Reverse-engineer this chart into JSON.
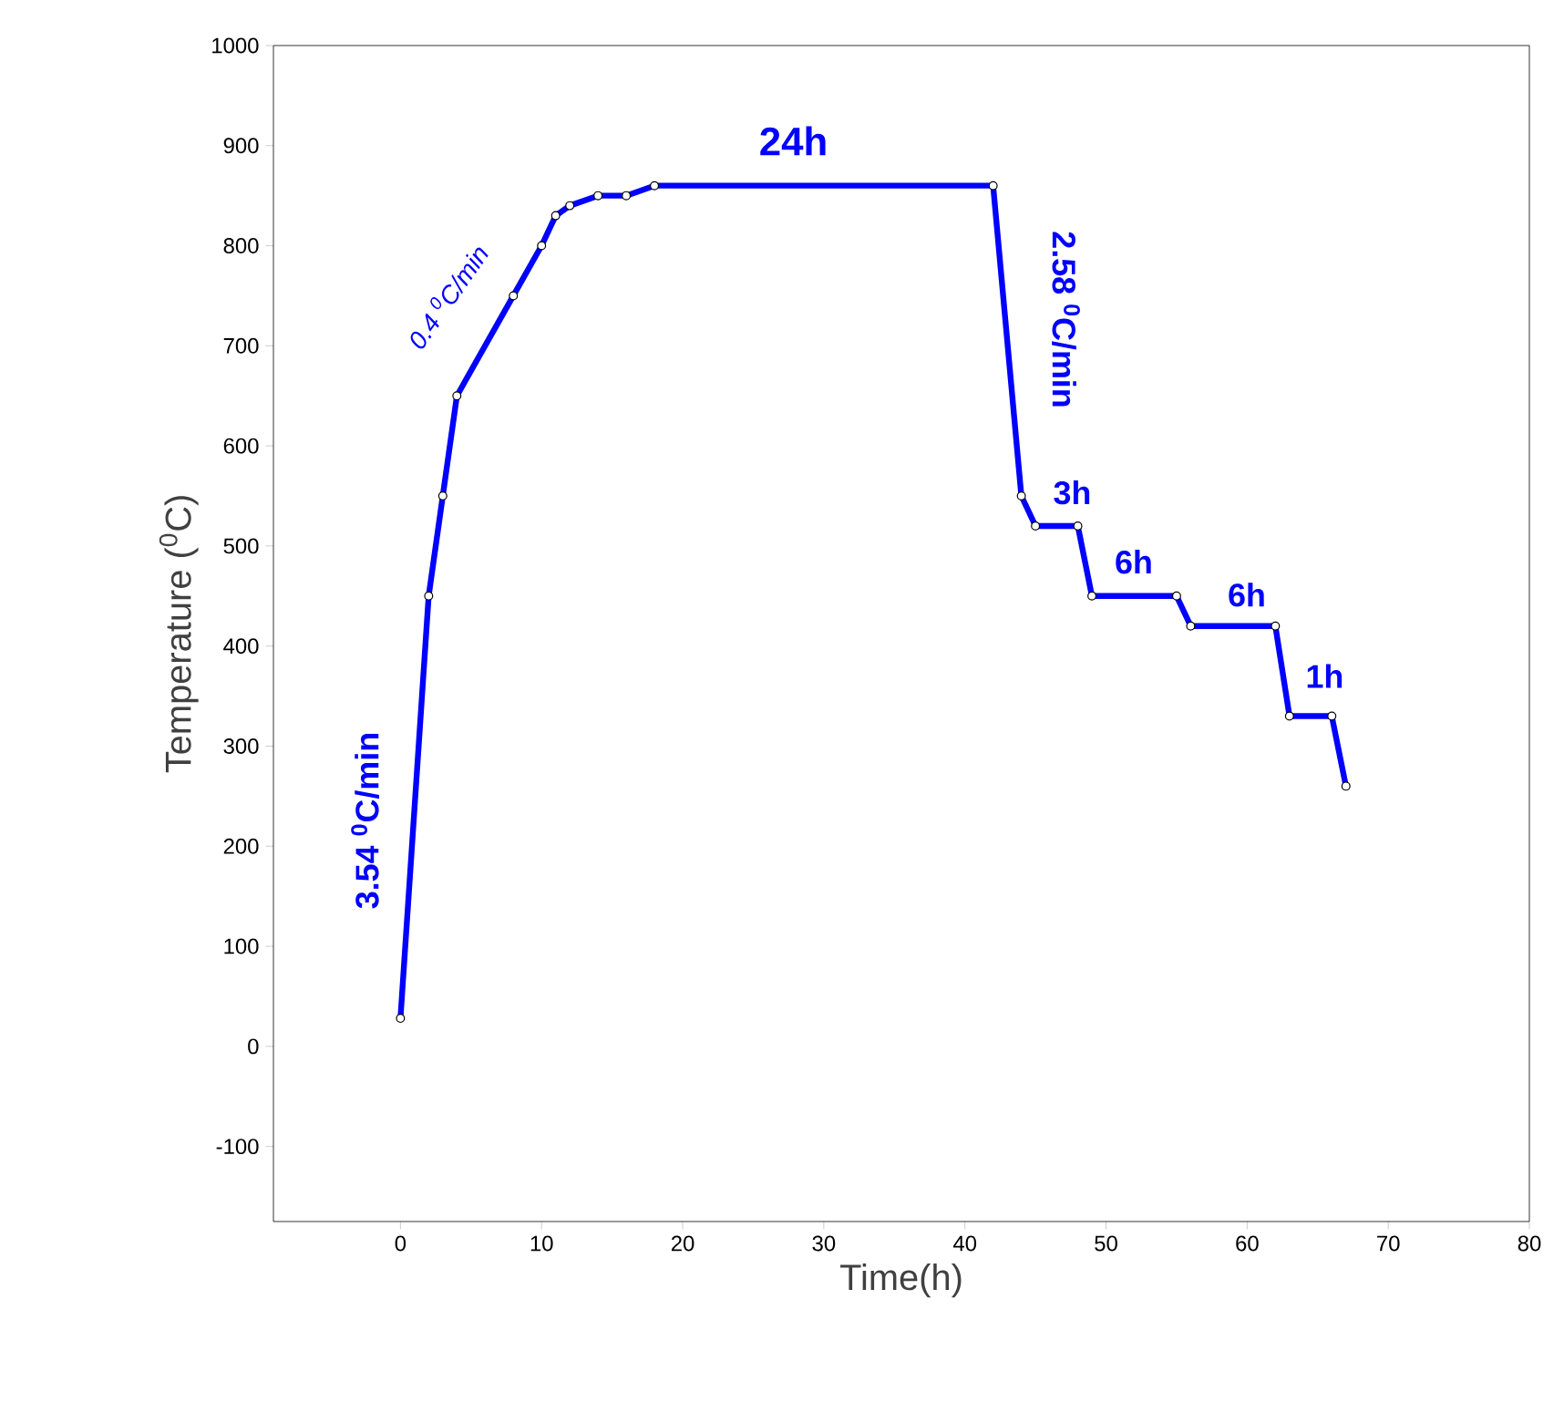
{
  "chart_data": {
    "type": "line",
    "xlabel": "Time(h)",
    "ylabel": "Temperature ($^{0}$C)",
    "x": [
      0,
      2,
      3,
      4,
      8,
      10,
      11,
      12,
      14,
      16,
      18,
      42,
      44,
      45,
      48,
      49,
      55,
      56,
      62,
      63,
      66,
      67
    ],
    "series": [
      {
        "color": "#0000ff",
        "values": [
          28,
          450,
          550,
          650,
          750,
          800,
          830,
          840,
          850,
          850,
          860,
          860,
          550,
          520,
          520,
          450,
          450,
          420,
          420,
          330,
          330,
          260
        ]
      }
    ],
    "xlim": [
      -9,
      80
    ],
    "ylim": [
      -175,
      1000
    ],
    "xticks": [
      0,
      10,
      20,
      30,
      40,
      50,
      60,
      70,
      80
    ],
    "yticks": [
      -100,
      0,
      100,
      200,
      300,
      400,
      500,
      600,
      700,
      800,
      900,
      1000
    ],
    "marker": "circle",
    "line_style": "solid",
    "grid": false,
    "annotations": [
      "3.54 $^{0}$C/min",
      "0.4 $^{0}$C/min",
      "24h",
      "2.58 $^{0}$C/min",
      "3h",
      "6h",
      "6h",
      "1h"
    ]
  }
}
